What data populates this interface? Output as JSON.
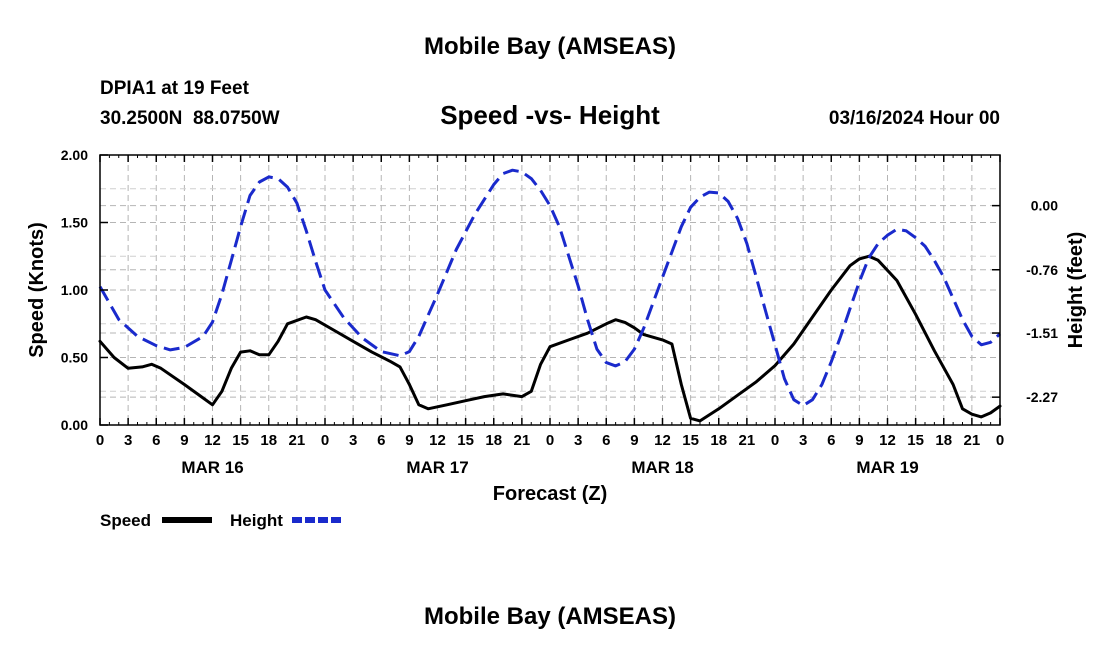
{
  "page": {
    "top_title": "Mobile Bay (AMSEAS)",
    "bottom_title": "Mobile Bay (AMSEAS)",
    "station_line": "DPIA1 at 19 Feet",
    "coord_line": "30.2500N  88.0750W",
    "chart_title": "Speed -vs- Height",
    "date_line": "03/16/2024 Hour 00"
  },
  "chart_data": {
    "type": "line",
    "title": "Speed -vs- Height",
    "xlabel": "Forecast (Z)",
    "ylabel_left": "Speed (Knots)",
    "ylabel_right": "Height (feet)",
    "x_range_hours": [
      0,
      96
    ],
    "ylim_left": [
      0,
      2
    ],
    "ylim_right": [
      -2.6,
      0.6
    ],
    "grid": true,
    "legend_position": "bottom-left",
    "x_tick_labels": [
      "0",
      "3",
      "6",
      "9",
      "12",
      "15",
      "18",
      "21",
      "0",
      "3",
      "6",
      "9",
      "12",
      "15",
      "18",
      "21",
      "0",
      "3",
      "6",
      "9",
      "12",
      "15",
      "18",
      "21",
      "0",
      "3",
      "6",
      "9",
      "12",
      "15",
      "18",
      "21",
      "0"
    ],
    "date_labels": [
      {
        "label": "MAR 16",
        "hour": 12
      },
      {
        "label": "MAR 17",
        "hour": 36
      },
      {
        "label": "MAR 18",
        "hour": 60
      },
      {
        "label": "MAR 19",
        "hour": 84
      }
    ],
    "y_left_ticks": [
      "0.00",
      "0.50",
      "1.00",
      "1.50",
      "2.00"
    ],
    "y_left_tick_values": [
      0,
      0.5,
      1.0,
      1.5,
      2.0
    ],
    "y_right_ticks": [
      "0.00",
      "-0.76",
      "-1.51",
      "-2.27"
    ],
    "y_right_tick_values": [
      0.0,
      -0.76,
      -1.51,
      -2.27
    ],
    "series": [
      {
        "name": "Speed",
        "axis": "left",
        "color": "#000000",
        "style": "solid",
        "points": [
          [
            0,
            0.62
          ],
          [
            1.5,
            0.5
          ],
          [
            3,
            0.42
          ],
          [
            4.5,
            0.43
          ],
          [
            5.5,
            0.45
          ],
          [
            6.5,
            0.42
          ],
          [
            9,
            0.3
          ],
          [
            11,
            0.2
          ],
          [
            12,
            0.15
          ],
          [
            13,
            0.25
          ],
          [
            14,
            0.42
          ],
          [
            15,
            0.54
          ],
          [
            16,
            0.55
          ],
          [
            17,
            0.52
          ],
          [
            18,
            0.52
          ],
          [
            19,
            0.62
          ],
          [
            20,
            0.75
          ],
          [
            22,
            0.8
          ],
          [
            23,
            0.78
          ],
          [
            25,
            0.7
          ],
          [
            27,
            0.62
          ],
          [
            29,
            0.54
          ],
          [
            31,
            0.47
          ],
          [
            32,
            0.43
          ],
          [
            33,
            0.3
          ],
          [
            34,
            0.15
          ],
          [
            35,
            0.12
          ],
          [
            37,
            0.15
          ],
          [
            39,
            0.18
          ],
          [
            41,
            0.21
          ],
          [
            43,
            0.23
          ],
          [
            45,
            0.21
          ],
          [
            46,
            0.25
          ],
          [
            47,
            0.45
          ],
          [
            48,
            0.58
          ],
          [
            50,
            0.63
          ],
          [
            52,
            0.68
          ],
          [
            54,
            0.75
          ],
          [
            55,
            0.78
          ],
          [
            56,
            0.76
          ],
          [
            57,
            0.72
          ],
          [
            58,
            0.67
          ],
          [
            60,
            0.63
          ],
          [
            61,
            0.6
          ],
          [
            62,
            0.3
          ],
          [
            63,
            0.05
          ],
          [
            64,
            0.03
          ],
          [
            66,
            0.12
          ],
          [
            68,
            0.22
          ],
          [
            70,
            0.32
          ],
          [
            72,
            0.44
          ],
          [
            74,
            0.6
          ],
          [
            76,
            0.8
          ],
          [
            78,
            1.0
          ],
          [
            80,
            1.18
          ],
          [
            81,
            1.23
          ],
          [
            82,
            1.25
          ],
          [
            83,
            1.22
          ],
          [
            85,
            1.07
          ],
          [
            87,
            0.82
          ],
          [
            89,
            0.55
          ],
          [
            91,
            0.3
          ],
          [
            92,
            0.12
          ],
          [
            93,
            0.08
          ],
          [
            94,
            0.06
          ],
          [
            95,
            0.09
          ],
          [
            96,
            0.14
          ]
        ]
      },
      {
        "name": "Height",
        "axis": "right",
        "color": "#1a2acc",
        "style": "dashed",
        "points": [
          [
            0,
            -0.96
          ],
          [
            2,
            -1.35
          ],
          [
            4,
            -1.55
          ],
          [
            6,
            -1.66
          ],
          [
            7.5,
            -1.71
          ],
          [
            9,
            -1.68
          ],
          [
            11,
            -1.55
          ],
          [
            12,
            -1.38
          ],
          [
            13,
            -1.05
          ],
          [
            14,
            -0.65
          ],
          [
            15,
            -0.25
          ],
          [
            16,
            0.12
          ],
          [
            17,
            0.28
          ],
          [
            18,
            0.34
          ],
          [
            19,
            0.32
          ],
          [
            20,
            0.22
          ],
          [
            21,
            0.03
          ],
          [
            22,
            -0.3
          ],
          [
            23,
            -0.66
          ],
          [
            24,
            -1.0
          ],
          [
            26,
            -1.33
          ],
          [
            28,
            -1.57
          ],
          [
            30,
            -1.73
          ],
          [
            32,
            -1.78
          ],
          [
            33,
            -1.73
          ],
          [
            34,
            -1.55
          ],
          [
            35,
            -1.3
          ],
          [
            36,
            -1.05
          ],
          [
            38,
            -0.52
          ],
          [
            40,
            -0.1
          ],
          [
            42,
            0.25
          ],
          [
            43,
            0.38
          ],
          [
            44,
            0.42
          ],
          [
            45,
            0.4
          ],
          [
            46,
            0.32
          ],
          [
            47,
            0.18
          ],
          [
            48,
            0.0
          ],
          [
            49,
            -0.25
          ],
          [
            50,
            -0.6
          ],
          [
            51,
            -0.95
          ],
          [
            52,
            -1.35
          ],
          [
            53,
            -1.7
          ],
          [
            54,
            -1.86
          ],
          [
            55,
            -1.9
          ],
          [
            56,
            -1.85
          ],
          [
            57,
            -1.7
          ],
          [
            58,
            -1.45
          ],
          [
            59,
            -1.15
          ],
          [
            60,
            -0.85
          ],
          [
            61,
            -0.55
          ],
          [
            62,
            -0.25
          ],
          [
            63,
            -0.02
          ],
          [
            64,
            0.1
          ],
          [
            65,
            0.16
          ],
          [
            66,
            0.15
          ],
          [
            67,
            0.05
          ],
          [
            68,
            -0.15
          ],
          [
            69,
            -0.45
          ],
          [
            70,
            -0.85
          ],
          [
            71,
            -1.25
          ],
          [
            72,
            -1.65
          ],
          [
            73,
            -2.05
          ],
          [
            74,
            -2.3
          ],
          [
            75,
            -2.37
          ],
          [
            76,
            -2.3
          ],
          [
            77,
            -2.12
          ],
          [
            78,
            -1.85
          ],
          [
            79,
            -1.55
          ],
          [
            80,
            -1.22
          ],
          [
            81,
            -0.9
          ],
          [
            82,
            -0.62
          ],
          [
            83,
            -0.45
          ],
          [
            84,
            -0.35
          ],
          [
            85,
            -0.28
          ],
          [
            86,
            -0.3
          ],
          [
            87,
            -0.38
          ],
          [
            88,
            -0.48
          ],
          [
            89,
            -0.65
          ],
          [
            90,
            -0.85
          ],
          [
            91,
            -1.1
          ],
          [
            92,
            -1.35
          ],
          [
            93,
            -1.55
          ],
          [
            94,
            -1.65
          ],
          [
            95,
            -1.62
          ],
          [
            96,
            -1.52
          ]
        ]
      }
    ]
  }
}
